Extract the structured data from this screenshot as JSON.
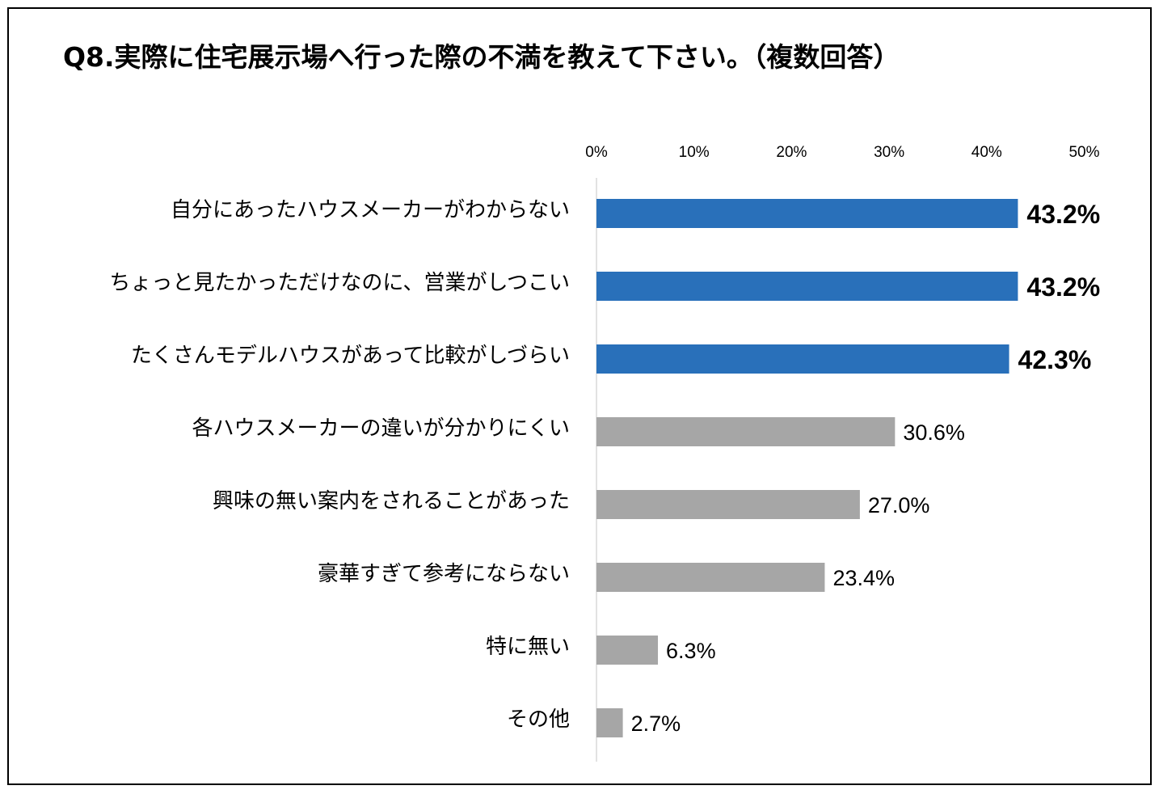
{
  "chart_data": {
    "type": "bar",
    "orientation": "horizontal",
    "title": "Q8.実際に住宅展示場へ行った際の不満を教えて下さい。（複数回答）",
    "xlim": [
      0,
      50
    ],
    "ticks": [
      0,
      10,
      20,
      30,
      40,
      50
    ],
    "tick_labels": [
      "0%",
      "10%",
      "20%",
      "30%",
      "40%",
      "50%"
    ],
    "axis_position": "top",
    "grid": false,
    "legend": "none",
    "categories": [
      "自分にあったハウスメーカーがわからない",
      "ちょっと見たかっただけなのに、営業がしつこい",
      "たくさんモデルハウスがあって比較がしづらい",
      "各ハウスメーカーの違いが分かりにくい",
      "興味の無い案内をされることがあった",
      "豪華すぎて参考にならない",
      "特に無い",
      "その他"
    ],
    "values": [
      43.2,
      43.2,
      42.3,
      30.6,
      27.0,
      23.4,
      6.3,
      2.7
    ],
    "value_labels": [
      "43.2%",
      "43.2%",
      "42.3%",
      "30.6%",
      "27.0%",
      "23.4%",
      "6.3%",
      "2.7%"
    ],
    "highlight": [
      true,
      true,
      true,
      false,
      false,
      false,
      false,
      false
    ],
    "colors": {
      "highlight": "#2970BA",
      "normal": "#A6A6A6",
      "axis_line": "#D9D9D9",
      "text": "#000000"
    }
  }
}
